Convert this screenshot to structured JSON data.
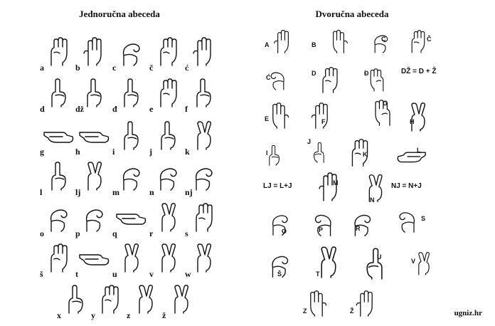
{
  "left": {
    "title": "Jednoručna abeceda",
    "letters": [
      "a",
      "b",
      "c",
      "č",
      "ć",
      "d",
      "dž",
      "đ",
      "e",
      "f",
      "g",
      "h",
      "i",
      "j",
      "k",
      "l",
      "lj",
      "m",
      "n",
      "nj",
      "o",
      "p",
      "q",
      "r",
      "s",
      "š",
      "t",
      "u",
      "v",
      "w",
      "x",
      "y",
      "z",
      "ž"
    ]
  },
  "right": {
    "title": "Dvoručna abeceda",
    "labels": [
      "A",
      "B",
      "C",
      "Č",
      "Ć",
      "D",
      "Đ",
      "E",
      "F",
      "G",
      "H",
      "I",
      "J",
      "K",
      "L",
      "M",
      "N",
      "O",
      "P",
      "R",
      "S",
      "Š",
      "T",
      "U",
      "V",
      "Z",
      "Ž"
    ],
    "formulas": {
      "dz": "DŽ = D + Ž",
      "lj": "LJ = L+J",
      "nj": "NJ = N+J"
    }
  },
  "credit": "ugniz.hr"
}
